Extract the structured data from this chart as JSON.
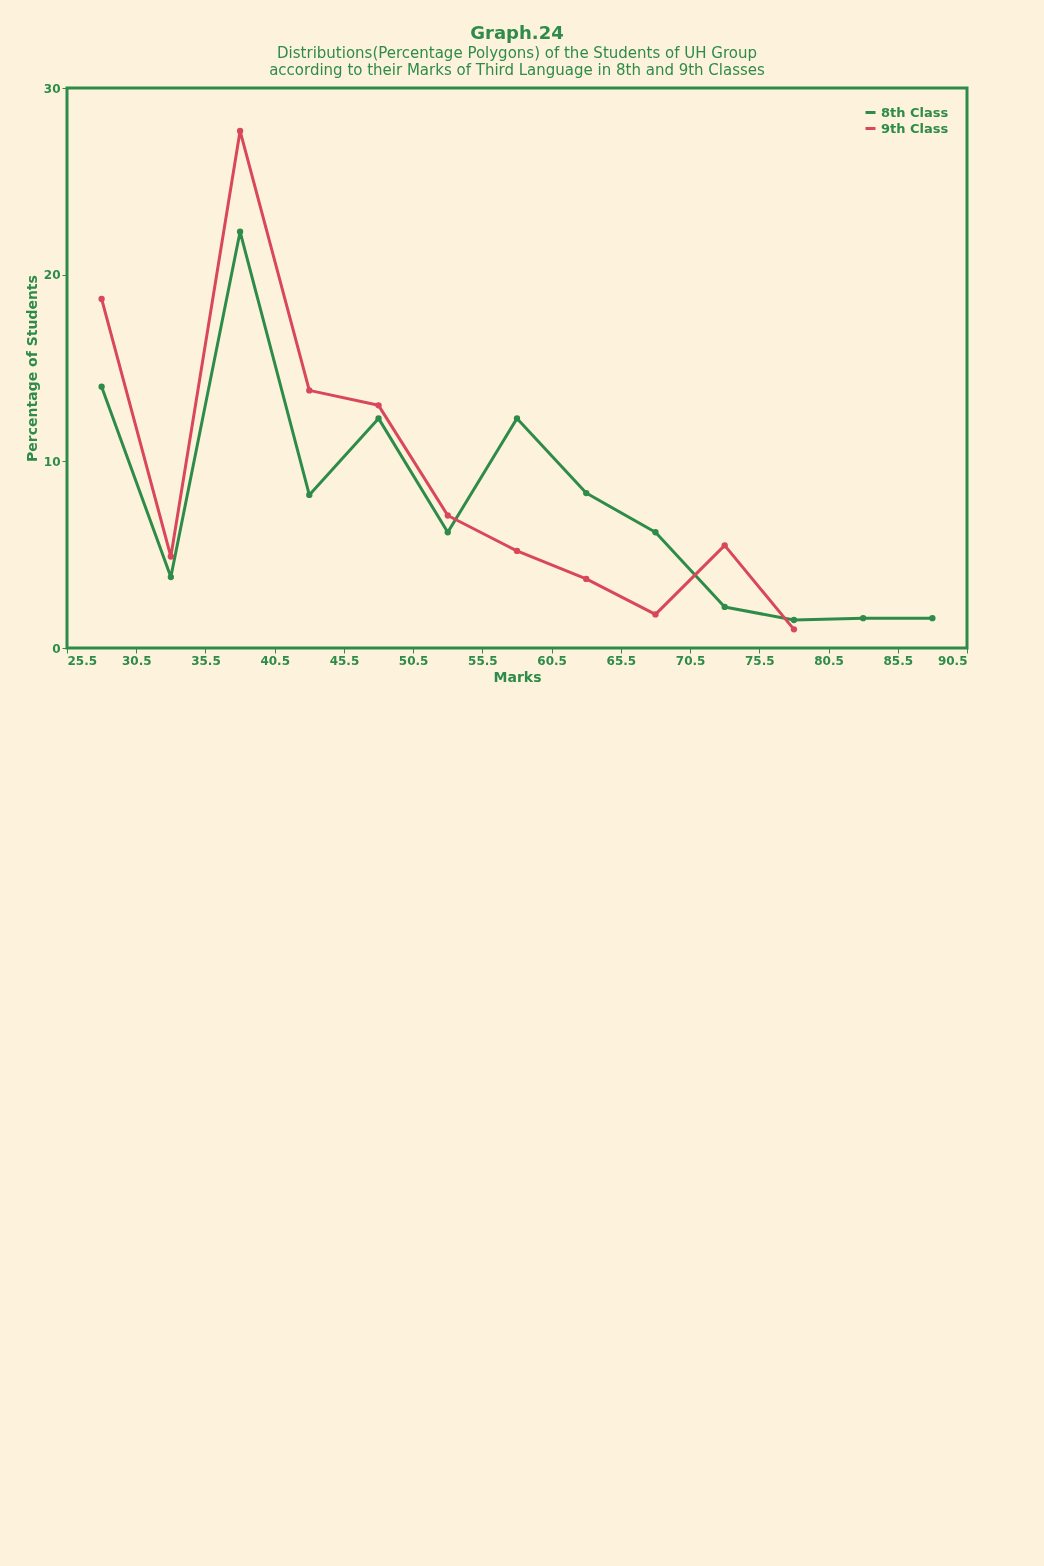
{
  "chart_data": {
    "type": "line",
    "title": "Graph.24",
    "subtitle": [
      "Distributions(Percentage Polygons) of the Students of UH Group",
      "according to their Marks of Third Language in 8th and 9th Classes"
    ],
    "xlabel": "Marks",
    "ylabel": "Percentage of Students",
    "x": [
      28,
      33,
      38,
      43,
      48,
      53,
      58,
      63,
      68,
      73,
      78,
      83,
      88
    ],
    "series": [
      {
        "name": "8th Class",
        "color": "#2e8b4a",
        "values": [
          14.0,
          3.8,
          22.3,
          8.2,
          12.3,
          6.2,
          12.3,
          8.3,
          6.2,
          2.2,
          1.5,
          1.6,
          1.6
        ]
      },
      {
        "name": "9th Class",
        "color": "#d9475a",
        "values": [
          18.7,
          4.9,
          27.7,
          13.8,
          13.0,
          7.1,
          5.2,
          3.7,
          1.8,
          5.5,
          1.0,
          null,
          null
        ]
      }
    ],
    "xlim": [
      25.5,
      90.5
    ],
    "xticks": [
      25.5,
      30.5,
      35.5,
      40.5,
      45.5,
      50.5,
      55.5,
      60.5,
      65.5,
      70.5,
      75.5,
      80.5,
      85.5,
      90.5
    ],
    "ylim": [
      0,
      30
    ],
    "yticks": [
      0,
      10,
      20,
      30
    ],
    "grid": false,
    "legend": "top right",
    "marker": "circle",
    "line_style": "solid"
  }
}
